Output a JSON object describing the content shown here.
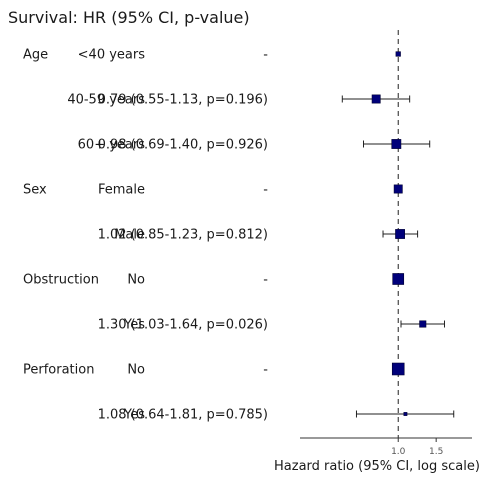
{
  "chart_data": {
    "type": "forest",
    "title": "Survival: HR (95% CI, p-value)",
    "xlabel": "Hazard ratio (95% CI, log scale)",
    "x_scale": "log",
    "xlim": [
      0.35,
      2.2
    ],
    "x_ticks": [
      {
        "value": 1.0,
        "label": "1.0"
      },
      {
        "value": 1.5,
        "label": "1.5"
      }
    ],
    "reference_line": 1.0,
    "colors": {
      "marker": "#00007a",
      "line": "#222222",
      "axis": "#333333"
    },
    "rows": [
      {
        "variable": "Age",
        "level": "<40 years",
        "estimate_text": "-",
        "hr": 1.0,
        "reference": true,
        "box": 1.0
      },
      {
        "variable": "",
        "level": "40-59 years",
        "estimate_text": "0.79 (0.55-1.13, p=0.196)",
        "hr": 0.79,
        "low": 0.55,
        "high": 1.13,
        "box": 1.8
      },
      {
        "variable": "",
        "level": "60+ years",
        "estimate_text": "0.98 (0.69-1.40, p=0.926)",
        "hr": 0.98,
        "low": 0.69,
        "high": 1.4,
        "box": 2.0
      },
      {
        "variable": "Sex",
        "level": "Female",
        "estimate_text": "-",
        "hr": 1.0,
        "reference": true,
        "box": 1.8
      },
      {
        "variable": "",
        "level": "Male",
        "estimate_text": "1.02 (0.85-1.23, p=0.812)",
        "hr": 1.02,
        "low": 0.85,
        "high": 1.23,
        "box": 2.0
      },
      {
        "variable": "Obstruction",
        "level": "No",
        "estimate_text": "-",
        "hr": 1.0,
        "reference": true,
        "box": 2.4
      },
      {
        "variable": "",
        "level": "Yes",
        "estimate_text": "1.30 (1.03-1.64, p=0.026)",
        "hr": 1.3,
        "low": 1.03,
        "high": 1.64,
        "box": 1.4
      },
      {
        "variable": "Perforation",
        "level": "No",
        "estimate_text": "-",
        "hr": 1.0,
        "reference": true,
        "box": 2.6
      },
      {
        "variable": "",
        "level": "Yes",
        "estimate_text": "1.08 (0.64-1.81, p=0.785)",
        "hr": 1.08,
        "low": 0.64,
        "high": 1.81,
        "box": 0.7
      }
    ]
  }
}
